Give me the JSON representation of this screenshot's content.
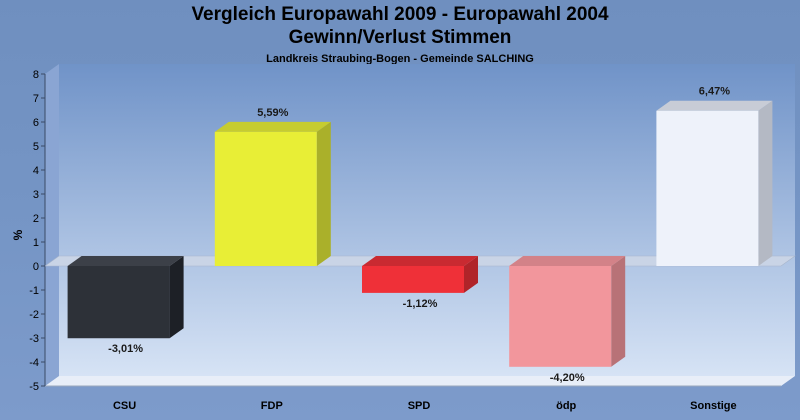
{
  "chart_data": {
    "type": "bar",
    "title": "Vergleich Europawahl 2009 - Europawahl 2004",
    "title_line2": "Gewinn/Verlust Stimmen",
    "subtitle": "Landkreis Straubing-Bogen - Gemeinde SALCHING",
    "ylabel": "%",
    "xlabel": "",
    "ylim": [
      -5,
      8
    ],
    "yticks": [
      8,
      7,
      6,
      5,
      4,
      3,
      2,
      1,
      0,
      -1,
      -2,
      -3,
      -4,
      -5
    ],
    "categories": [
      "CSU",
      "FDP",
      "SPD",
      "ödp",
      "Sonstige"
    ],
    "values": [
      -3.01,
      5.59,
      -1.12,
      -4.2,
      6.47
    ],
    "value_labels": [
      "-3,01%",
      "5,59%",
      "-1,12%",
      "-4,20%",
      "6,47%"
    ],
    "colors": [
      "#2d3138",
      "#e8ee36",
      "#ef3038",
      "#f2969c",
      "#eef2fa"
    ],
    "side_colors": [
      "#1d2026",
      "#aab02a",
      "#b02429",
      "#b87277",
      "#b4b9c4"
    ],
    "top_colors": [
      "#3c4048",
      "#c6cc30",
      "#c92a31",
      "#d38288",
      "#c8ccd6"
    ],
    "grid": false,
    "style": "3d"
  }
}
